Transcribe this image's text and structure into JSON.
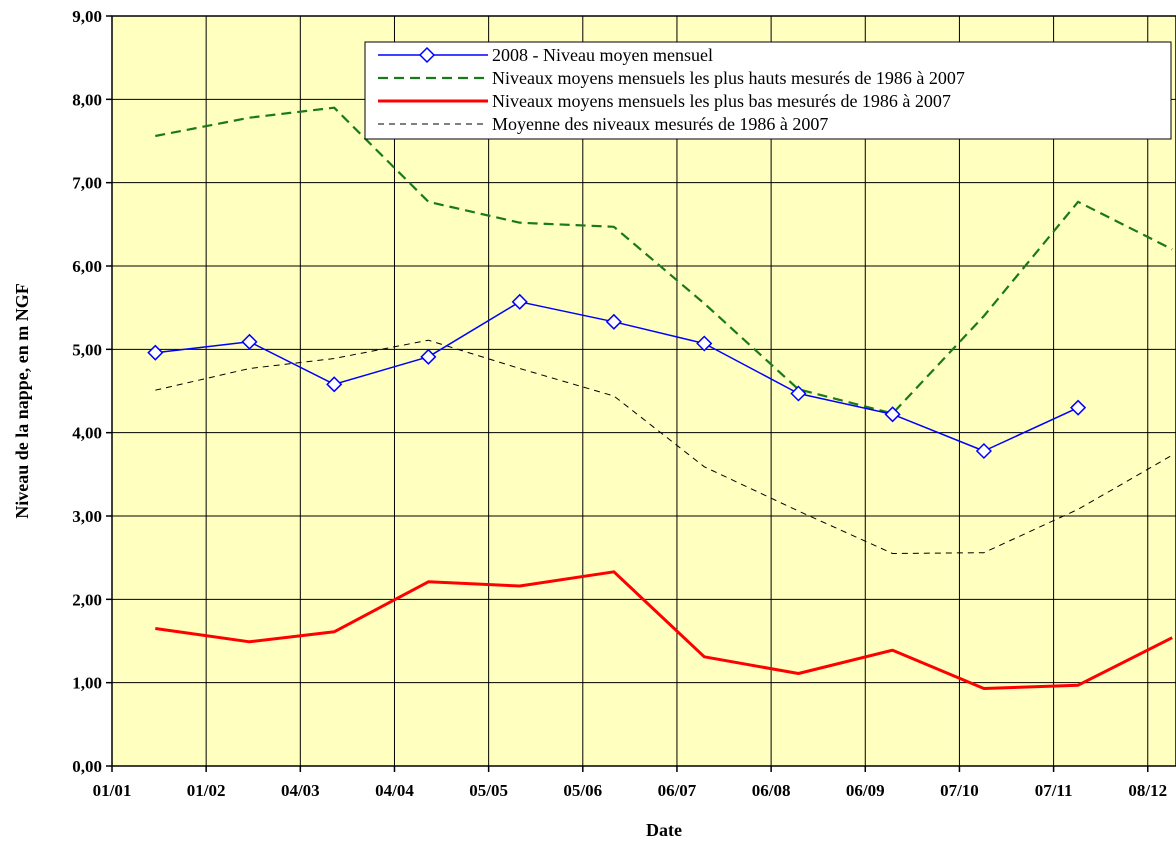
{
  "chart_data": {
    "type": "line",
    "xlabel": "Date",
    "ylabel": "Niveau de la nappe, en m NGF",
    "ylim": [
      0,
      9
    ],
    "yticks": [
      "0,00",
      "1,00",
      "2,00",
      "3,00",
      "4,00",
      "5,00",
      "6,00",
      "7,00",
      "8,00",
      "9,00"
    ],
    "xlim": [
      0,
      11.3
    ],
    "xticks": [
      {
        "pos": 0,
        "label": "01/01"
      },
      {
        "pos": 1,
        "label": "01/02"
      },
      {
        "pos": 2,
        "label": "04/03"
      },
      {
        "pos": 3,
        "label": "04/04"
      },
      {
        "pos": 4,
        "label": "05/05"
      },
      {
        "pos": 5,
        "label": "05/06"
      },
      {
        "pos": 6,
        "label": "06/07"
      },
      {
        "pos": 7,
        "label": "06/08"
      },
      {
        "pos": 8,
        "label": "06/09"
      },
      {
        "pos": 9,
        "label": "07/10"
      },
      {
        "pos": 10,
        "label": "07/11"
      },
      {
        "pos": 11,
        "label": "08/12"
      }
    ],
    "grid": true,
    "background_color": "#FFFFC0",
    "legend_position": "top-right",
    "series": [
      {
        "name": "2008 - Niveau moyen mensuel",
        "color": "#0000FF",
        "style": "solid",
        "marker": "diamond",
        "points": [
          [
            0.46,
            4.96
          ],
          [
            1.46,
            5.09
          ],
          [
            2.36,
            4.58
          ],
          [
            3.36,
            4.91
          ],
          [
            4.33,
            5.57
          ],
          [
            5.33,
            5.33
          ],
          [
            6.29,
            5.07
          ],
          [
            7.29,
            4.47
          ],
          [
            8.29,
            4.22
          ],
          [
            9.26,
            3.78
          ],
          [
            10.26,
            4.3
          ]
        ]
      },
      {
        "name": "Niveaux moyens mensuels les plus hauts mesurés de 1986 à 2007",
        "color": "#1A7A1A",
        "style": "dashed",
        "marker": "none",
        "points": [
          [
            0.46,
            7.56
          ],
          [
            1.46,
            7.78
          ],
          [
            2.36,
            7.9
          ],
          [
            3.36,
            6.77
          ],
          [
            4.33,
            6.52
          ],
          [
            5.33,
            6.47
          ],
          [
            6.29,
            5.55
          ],
          [
            7.29,
            4.52
          ],
          [
            8.29,
            4.23
          ],
          [
            9.26,
            5.4
          ],
          [
            10.26,
            6.77
          ],
          [
            11.26,
            6.2
          ]
        ]
      },
      {
        "name": "Niveaux moyens mensuels les plus bas mesurés de 1986 à 2007",
        "color": "#FF0000",
        "style": "solid-thick",
        "marker": "none",
        "points": [
          [
            0.46,
            1.65
          ],
          [
            1.46,
            1.49
          ],
          [
            2.36,
            1.61
          ],
          [
            3.36,
            2.21
          ],
          [
            4.33,
            2.16
          ],
          [
            5.33,
            2.33
          ],
          [
            6.29,
            1.31
          ],
          [
            7.29,
            1.11
          ],
          [
            8.29,
            1.39
          ],
          [
            9.26,
            0.93
          ],
          [
            10.26,
            0.97
          ],
          [
            11.26,
            1.54
          ]
        ]
      },
      {
        "name": "Moyenne des niveaux mesurés de 1986 à 2007",
        "color": "#000000",
        "style": "dashed-thin",
        "marker": "none",
        "points": [
          [
            0.46,
            4.51
          ],
          [
            1.46,
            4.77
          ],
          [
            2.36,
            4.89
          ],
          [
            3.36,
            5.11
          ],
          [
            4.33,
            4.77
          ],
          [
            5.33,
            4.44
          ],
          [
            6.29,
            3.59
          ],
          [
            7.29,
            3.06
          ],
          [
            8.29,
            2.55
          ],
          [
            9.26,
            2.56
          ],
          [
            10.26,
            3.08
          ],
          [
            11.26,
            3.73
          ]
        ]
      }
    ]
  }
}
